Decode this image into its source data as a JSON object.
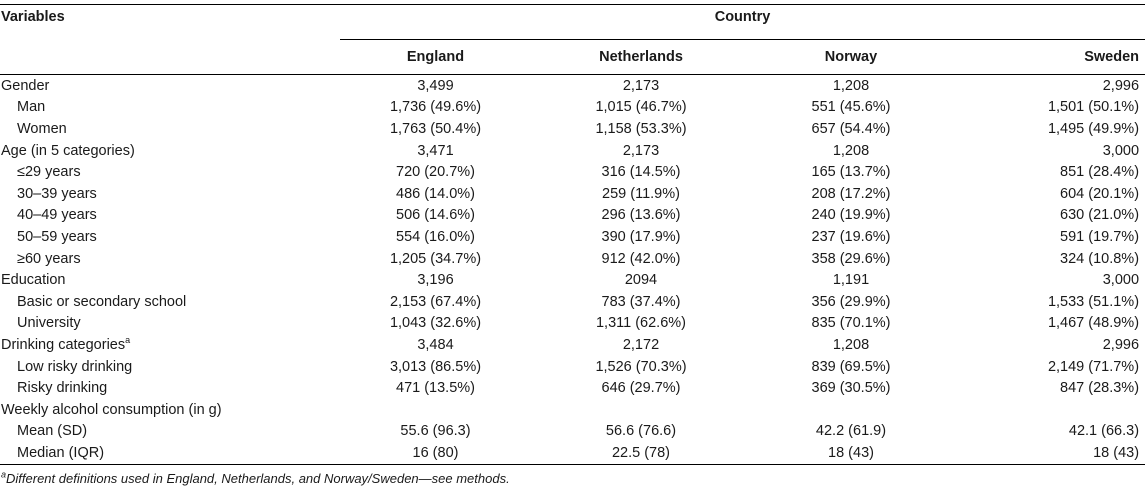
{
  "table": {
    "header": {
      "variables_label": "Variables",
      "country_label": "Country",
      "countries": [
        "England",
        "Netherlands",
        "Norway",
        "Sweden"
      ]
    },
    "rows": [
      {
        "label": "Gender",
        "sup": "",
        "indent": false,
        "values": [
          "3,499",
          "2,173",
          "1,208",
          "2,996"
        ]
      },
      {
        "label": "Man",
        "sup": "",
        "indent": true,
        "values": [
          "1,736 (49.6%)",
          "1,015 (46.7%)",
          "551 (45.6%)",
          "1,501 (50.1%)"
        ]
      },
      {
        "label": "Women",
        "sup": "",
        "indent": true,
        "values": [
          "1,763 (50.4%)",
          "1,158 (53.3%)",
          "657 (54.4%)",
          "1,495 (49.9%)"
        ]
      },
      {
        "label": "Age (in 5 categories)",
        "sup": "",
        "indent": false,
        "values": [
          "3,471",
          "2,173",
          "1,208",
          "3,000"
        ]
      },
      {
        "label": "≤29 years",
        "sup": "",
        "indent": true,
        "values": [
          "720 (20.7%)",
          "316 (14.5%)",
          "165 (13.7%)",
          "851 (28.4%)"
        ]
      },
      {
        "label": "30–39 years",
        "sup": "",
        "indent": true,
        "values": [
          "486 (14.0%)",
          "259 (11.9%)",
          "208 (17.2%)",
          "604 (20.1%)"
        ]
      },
      {
        "label": "40–49 years",
        "sup": "",
        "indent": true,
        "values": [
          "506 (14.6%)",
          "296 (13.6%)",
          "240 (19.9%)",
          "630 (21.0%)"
        ]
      },
      {
        "label": "50–59 years",
        "sup": "",
        "indent": true,
        "values": [
          "554 (16.0%)",
          "390 (17.9%)",
          "237 (19.6%)",
          "591 (19.7%)"
        ]
      },
      {
        "label": "≥60 years",
        "sup": "",
        "indent": true,
        "values": [
          "1,205 (34.7%)",
          "912 (42.0%)",
          "358 (29.6%)",
          "324 (10.8%)"
        ]
      },
      {
        "label": "Education",
        "sup": "",
        "indent": false,
        "values": [
          "3,196",
          "2094",
          "1,191",
          "3,000"
        ]
      },
      {
        "label": "Basic or secondary school",
        "sup": "",
        "indent": true,
        "values": [
          "2,153 (67.4%)",
          "783 (37.4%)",
          "356 (29.9%)",
          "1,533 (51.1%)"
        ]
      },
      {
        "label": "University",
        "sup": "",
        "indent": true,
        "values": [
          "1,043 (32.6%)",
          "1,311 (62.6%)",
          "835 (70.1%)",
          "1,467 (48.9%)"
        ]
      },
      {
        "label": "Drinking categories",
        "sup": "a",
        "indent": false,
        "values": [
          "3,484",
          "2,172",
          "1,208",
          "2,996"
        ]
      },
      {
        "label": "Low risky drinking",
        "sup": "",
        "indent": true,
        "values": [
          "3,013 (86.5%)",
          "1,526 (70.3%)",
          "839 (69.5%)",
          "2,149 (71.7%)"
        ]
      },
      {
        "label": "Risky drinking",
        "sup": "",
        "indent": true,
        "values": [
          "471 (13.5%)",
          "646 (29.7%)",
          "369 (30.5%)",
          "847 (28.3%)"
        ]
      },
      {
        "label": "Weekly alcohol consumption (in g)",
        "sup": "",
        "indent": false,
        "values": [
          "",
          "",
          "",
          ""
        ]
      },
      {
        "label": "Mean (SD)",
        "sup": "",
        "indent": true,
        "values": [
          "55.6 (96.3)",
          "56.6 (76.6)",
          "42.2 (61.9)",
          "42.1 (66.3)"
        ]
      },
      {
        "label": "Median (IQR)",
        "sup": "",
        "indent": true,
        "values": [
          "16 (80)",
          "22.5 (78)",
          "18 (43)",
          "18 (43)"
        ]
      }
    ]
  },
  "footnote": {
    "sup": "a",
    "text": "Different definitions used in England, Netherlands, and Norway/Sweden—see methods."
  }
}
